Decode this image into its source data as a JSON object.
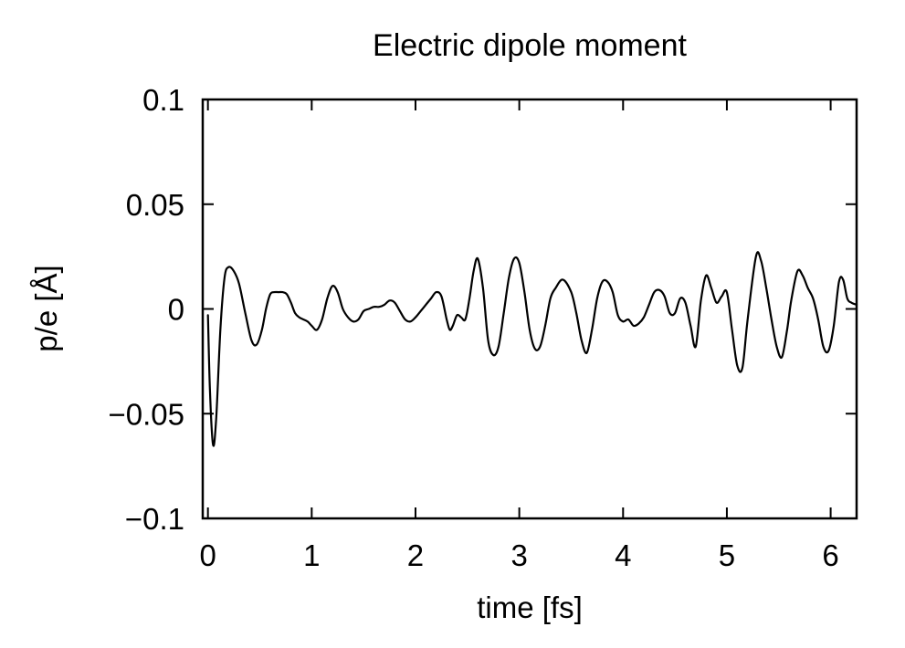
{
  "chart_data": {
    "type": "line",
    "title": "Electric dipole moment",
    "xlabel": "time [fs]",
    "ylabel": "p/e [Å]",
    "xlim": [
      -0.05,
      6.25
    ],
    "ylim": [
      -0.1,
      0.1
    ],
    "xticks": [
      0,
      1,
      2,
      3,
      4,
      5,
      6
    ],
    "xtick_labels": [
      "0",
      "1",
      "2",
      "3",
      "4",
      "5",
      "6"
    ],
    "yticks": [
      0.1,
      0.05,
      0,
      -0.05,
      -0.1
    ],
    "ytick_labels": [
      "0.1",
      "0.05",
      "0",
      "−0.05",
      "−0.1"
    ],
    "grid": false,
    "legend": "none",
    "line_color": "#000000",
    "series": [
      {
        "x": [
          0.0,
          0.02,
          0.05,
          0.08,
          0.12,
          0.16,
          0.2,
          0.25,
          0.3,
          0.36,
          0.42,
          0.47,
          0.52,
          0.56,
          0.6,
          0.64,
          0.68,
          0.72,
          0.76,
          0.8,
          0.84,
          0.88,
          0.92,
          0.96,
          1.0,
          1.05,
          1.1,
          1.15,
          1.2,
          1.25,
          1.3,
          1.35,
          1.4,
          1.45,
          1.5,
          1.55,
          1.6,
          1.65,
          1.7,
          1.75,
          1.8,
          1.85,
          1.9,
          1.95,
          2.0,
          2.05,
          2.1,
          2.15,
          2.2,
          2.25,
          2.3,
          2.33,
          2.36,
          2.4,
          2.44,
          2.48,
          2.52,
          2.56,
          2.6,
          2.65,
          2.7,
          2.75,
          2.8,
          2.85,
          2.9,
          2.95,
          3.0,
          3.05,
          3.1,
          3.15,
          3.2,
          3.25,
          3.3,
          3.35,
          3.42,
          3.5,
          3.55,
          3.6,
          3.65,
          3.7,
          3.75,
          3.8,
          3.85,
          3.9,
          3.95,
          4.0,
          4.05,
          4.1,
          4.15,
          4.2,
          4.25,
          4.3,
          4.35,
          4.4,
          4.45,
          4.5,
          4.55,
          4.6,
          4.65,
          4.7,
          4.75,
          4.8,
          4.85,
          4.9,
          4.95,
          5.0,
          5.05,
          5.1,
          5.15,
          5.2,
          5.28,
          5.33,
          5.38,
          5.43,
          5.48,
          5.53,
          5.58,
          5.62,
          5.68,
          5.73,
          5.78,
          5.83,
          5.88,
          5.93,
          5.98,
          6.03,
          6.08,
          6.12,
          6.16,
          6.2,
          6.25
        ],
        "y": [
          -0.003,
          -0.04,
          -0.065,
          -0.052,
          -0.01,
          0.015,
          0.02,
          0.018,
          0.012,
          -0.002,
          -0.015,
          -0.017,
          -0.01,
          0.0,
          0.007,
          0.008,
          0.008,
          0.008,
          0.007,
          0.003,
          -0.002,
          -0.004,
          -0.005,
          -0.006,
          -0.008,
          -0.01,
          -0.005,
          0.005,
          0.011,
          0.008,
          0.0,
          -0.004,
          -0.006,
          -0.005,
          -0.001,
          0.0,
          0.001,
          0.001,
          0.002,
          0.004,
          0.003,
          -0.001,
          -0.005,
          -0.006,
          -0.004,
          -0.001,
          0.002,
          0.005,
          0.008,
          0.006,
          -0.005,
          -0.01,
          -0.008,
          -0.003,
          -0.004,
          -0.005,
          0.005,
          0.018,
          0.024,
          0.01,
          -0.015,
          -0.022,
          -0.018,
          -0.002,
          0.015,
          0.024,
          0.022,
          0.008,
          -0.01,
          -0.019,
          -0.018,
          -0.008,
          0.005,
          0.01,
          0.014,
          0.008,
          -0.002,
          -0.015,
          -0.021,
          -0.01,
          0.005,
          0.013,
          0.013,
          0.008,
          -0.003,
          -0.006,
          -0.005,
          -0.008,
          -0.007,
          -0.004,
          0.002,
          0.008,
          0.009,
          0.006,
          -0.002,
          -0.002,
          0.005,
          0.003,
          -0.008,
          -0.018,
          0.004,
          0.016,
          0.01,
          0.003,
          0.006,
          0.008,
          -0.01,
          -0.027,
          -0.028,
          -0.005,
          0.025,
          0.023,
          0.01,
          -0.005,
          -0.018,
          -0.023,
          -0.01,
          0.004,
          0.018,
          0.016,
          0.01,
          0.005,
          -0.005,
          -0.018,
          -0.02,
          -0.008,
          0.013,
          0.014,
          0.005,
          0.003,
          0.002
        ]
      }
    ]
  }
}
